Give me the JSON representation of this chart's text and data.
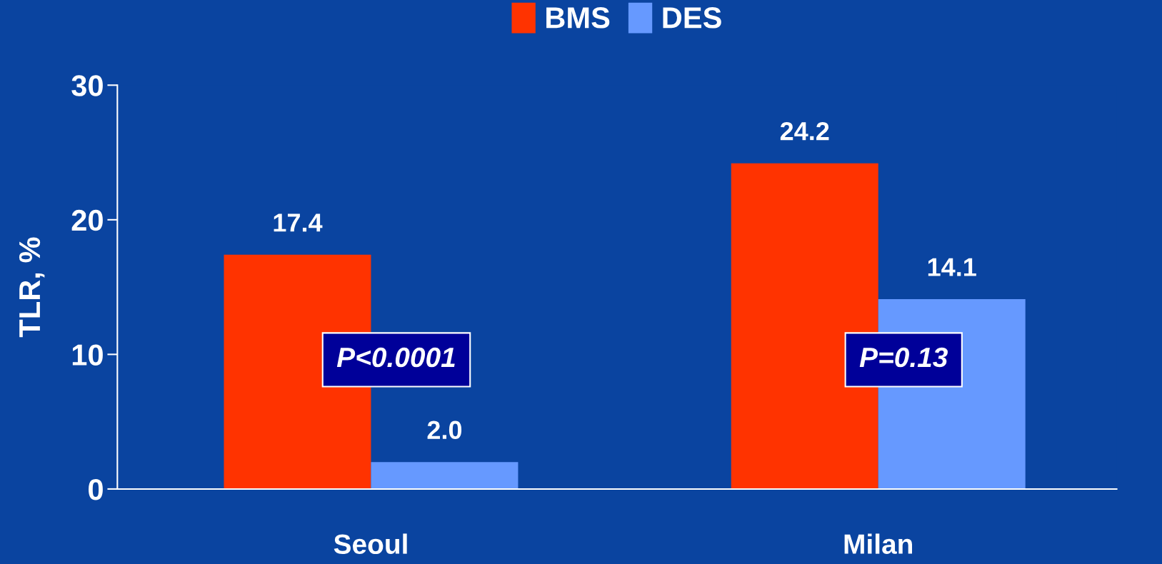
{
  "chart_data": {
    "type": "bar",
    "ylabel": "TLR, %",
    "categories": [
      "Seoul",
      "Milan"
    ],
    "series": [
      {
        "name": "BMS",
        "color": "#ff3300",
        "values": [
          17.4,
          24.2
        ],
        "value_labels": [
          "17.4",
          "24.2"
        ]
      },
      {
        "name": "DES",
        "color": "#6699ff",
        "values": [
          2.0,
          14.1
        ],
        "value_labels": [
          "2.0",
          "14.1"
        ]
      }
    ],
    "ylim": [
      0,
      30
    ],
    "yticks": [
      0,
      10,
      20,
      30
    ],
    "grid": false,
    "legend": "top",
    "annotations": [
      "P<0.0001",
      "P=0.13"
    ]
  }
}
